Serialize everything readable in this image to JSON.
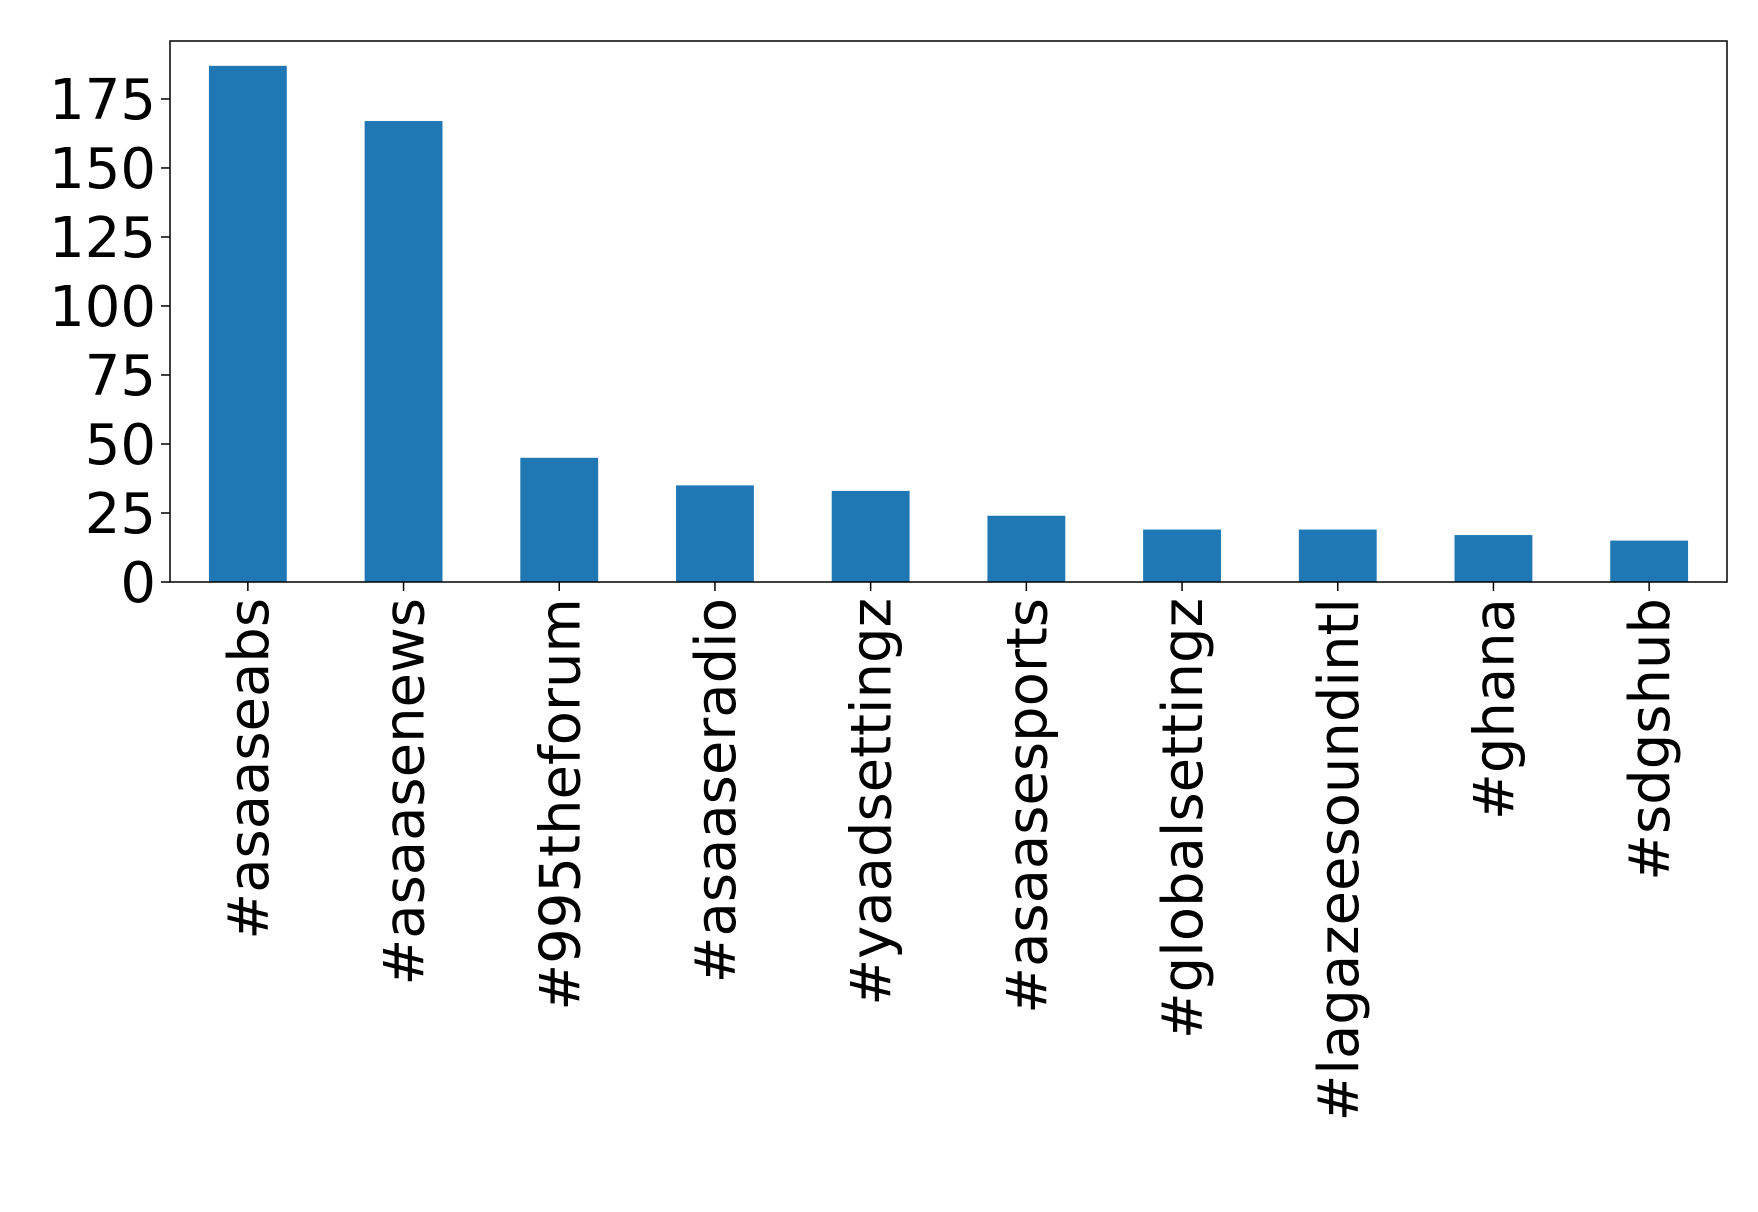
{
  "chart_data": {
    "type": "bar",
    "categories": [
      "#asaaseabs",
      "#asaasenews",
      "#995theforum",
      "#asaaseradio",
      "#yaadsettingz",
      "#asaasesports",
      "#globalsettingz",
      "#lagazeesoundintl",
      "#ghana",
      "#sdgshub"
    ],
    "values": [
      187,
      167,
      45,
      35,
      33,
      24,
      19,
      19,
      17,
      15
    ],
    "yticks": [
      0,
      25,
      50,
      75,
      100,
      125,
      150,
      175
    ],
    "ylim": [
      0,
      196
    ],
    "title": "",
    "xlabel": "",
    "ylabel": "",
    "grid": false,
    "bar_color": "#1f77b4"
  }
}
